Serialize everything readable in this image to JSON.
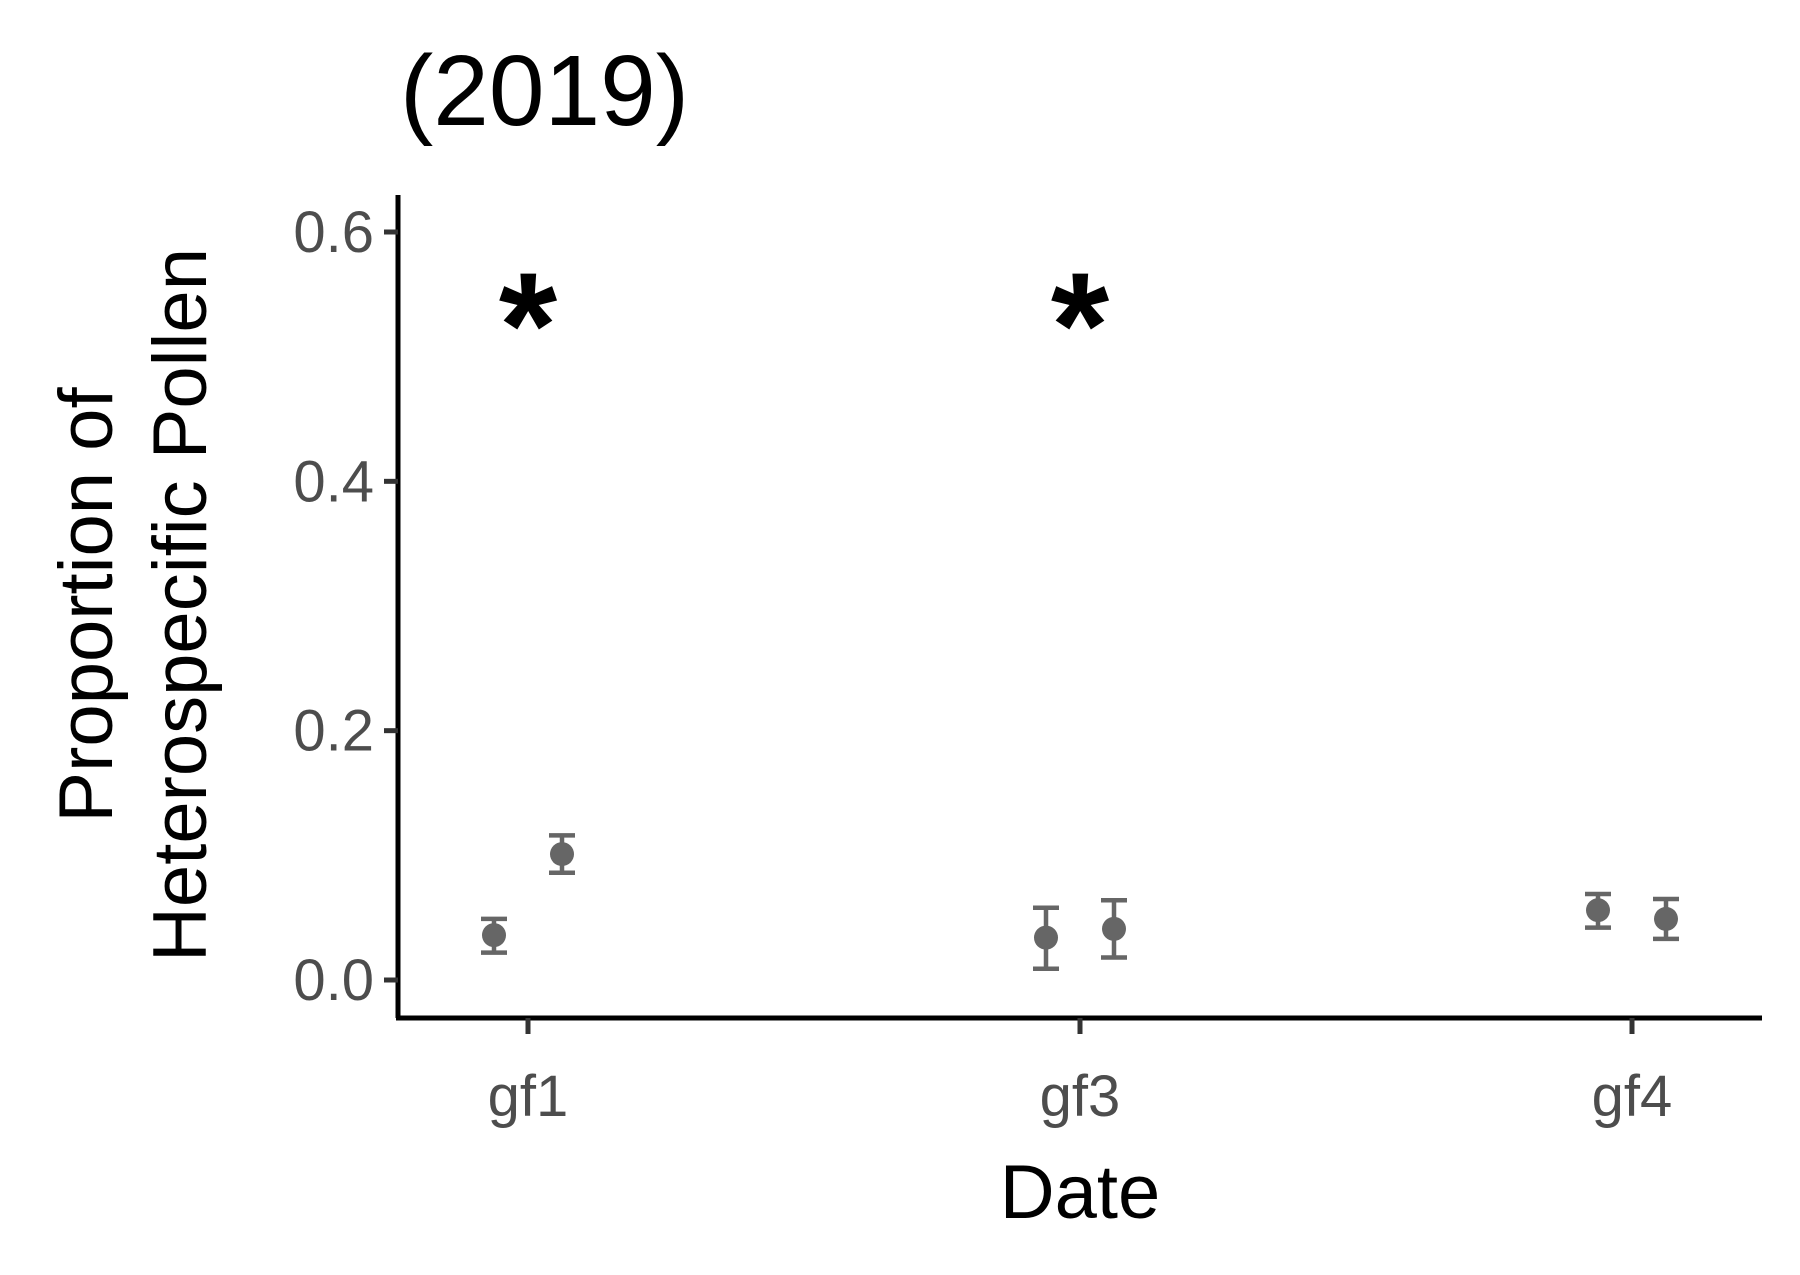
{
  "chart_data": {
    "type": "scatter",
    "title": "(2019)",
    "xlabel": "Date",
    "ylabel_lines": [
      "Proportion of",
      "Heterospecific Pollen"
    ],
    "categories": [
      "gf1",
      "gf3",
      "gf4"
    ],
    "ylim": [
      -0.03,
      0.63
    ],
    "yticks": [
      0.0,
      0.2,
      0.4,
      0.6
    ],
    "ytick_labels": [
      "0.0",
      "0.2",
      "0.4",
      "0.6"
    ],
    "grid": false,
    "point_color": "#666666",
    "series": [
      {
        "values": [
          0.036,
          0.034,
          0.056
        ],
        "lower": [
          0.022,
          0.009,
          0.042
        ],
        "upper": [
          0.049,
          0.058,
          0.069
        ]
      },
      {
        "values": [
          0.101,
          0.041,
          0.049
        ],
        "lower": [
          0.086,
          0.018,
          0.033
        ],
        "upper": [
          0.116,
          0.064,
          0.065
        ]
      }
    ],
    "annotations": [
      {
        "category": "gf1",
        "text": "*",
        "y": 0.56
      },
      {
        "category": "gf3",
        "text": "*",
        "y": 0.56
      }
    ]
  }
}
